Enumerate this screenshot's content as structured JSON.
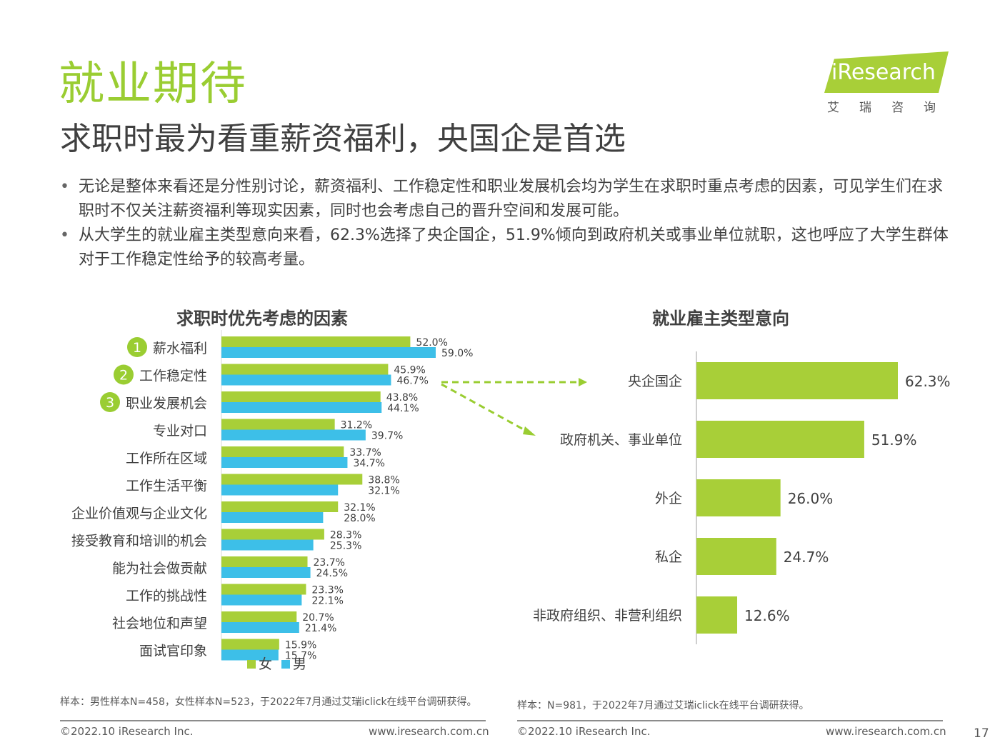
{
  "header": {
    "title": "就业期待",
    "subtitle": "求职时最为看重薪资福利，央国企是首选",
    "logo_text": "iResearch",
    "logo_sub": "艾瑞咨询"
  },
  "bullets": [
    "无论是整体来看还是分性别讨论，薪资福利、工作稳定性和职业发展机会均为学生在求职时重点考虑的因素，可见学生们在求职时不仅关注薪资福利等现实因素，同时也会考虑自己的晋升空间和发展可能。",
    "从大学生的就业雇主类型意向来看，62.3%选择了央企国企，51.9%倾向到政府机关或事业单位就职，这也呼应了大学生群体对于工作稳定性给予的较高考量。"
  ],
  "colors": {
    "female": "#a8cf38",
    "male": "#3dbfe8",
    "accent": "#9acd32",
    "text": "#404040"
  },
  "chart_data": [
    {
      "type": "bar",
      "title": "求职时优先考虑的因素",
      "orientation": "horizontal",
      "categories": [
        "薪水福利",
        "工作稳定性",
        "职业发展机会",
        "专业对口",
        "工作所在区域",
        "工作生活平衡",
        "企业价值观与企业文化",
        "接受教育和培训的机会",
        "能为社会做贡献",
        "工作的挑战性",
        "社会地位和声望",
        "面试官印象"
      ],
      "rank_badges": [
        "1",
        "2",
        "3"
      ],
      "series": [
        {
          "name": "女",
          "values": [
            52.0,
            45.9,
            43.8,
            31.2,
            33.7,
            38.8,
            32.1,
            28.3,
            23.7,
            23.3,
            20.7,
            15.9
          ]
        },
        {
          "name": "男",
          "values": [
            59.0,
            46.7,
            44.1,
            39.7,
            34.7,
            32.1,
            28.0,
            25.3,
            24.5,
            22.1,
            21.4,
            15.7
          ]
        }
      ],
      "value_suffix": "%",
      "legend": "bottom"
    },
    {
      "type": "bar",
      "title": "就业雇主类型意向",
      "orientation": "horizontal",
      "categories": [
        "央企国企",
        "政府机关、事业单位",
        "外企",
        "私企",
        "非政府组织、非营利组织"
      ],
      "values": [
        62.3,
        51.9,
        26.0,
        24.7,
        12.6
      ],
      "value_suffix": "%"
    }
  ],
  "footnotes": {
    "left": "样本：男性样本N=458，女性样本N=523，于2022年7月通过艾瑞iclick在线平台调研获得。",
    "right": "样本：N=981，于2022年7月通过艾瑞iclick在线平台调研获得。"
  },
  "footer": {
    "copyright_left": "©2022.10 iResearch Inc.",
    "url_left": "www.iresearch.com.cn",
    "copyright_right": "©2022.10 iResearch Inc.",
    "url_right": "www.iresearch.com.cn",
    "page_number": "17"
  }
}
